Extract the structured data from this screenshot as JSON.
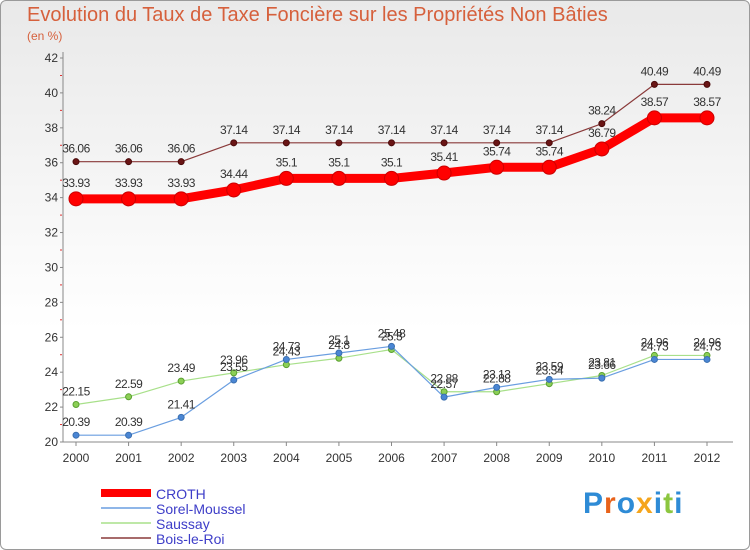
{
  "chart_title": "Evolution du Taux de Taxe Foncière sur les Propriétés Non Bâties",
  "unit_label": "(en %)",
  "chart_data": {
    "type": "line",
    "title": "Evolution du Taux de Taxe Foncière sur les Propriétés Non Bâties",
    "ylabel": "(en %)",
    "xlabel": "",
    "ylim": [
      20,
      42
    ],
    "yticks": [
      20,
      22,
      24,
      26,
      28,
      30,
      32,
      34,
      36,
      38,
      40,
      42
    ],
    "x": [
      "2000",
      "2001",
      "2002",
      "2003",
      "2004",
      "2005",
      "2006",
      "2007",
      "2008",
      "2009",
      "2010",
      "2011",
      "2012"
    ],
    "series": [
      {
        "name": "CROTH",
        "color": "#ff0000",
        "values": [
          33.93,
          33.93,
          33.93,
          34.44,
          35.1,
          35.1,
          35.1,
          35.41,
          35.74,
          35.74,
          36.79,
          38.57,
          38.57
        ]
      },
      {
        "name": "Sorel-Moussel",
        "color": "#4a86d4",
        "values": [
          20.39,
          20.39,
          21.41,
          23.55,
          24.73,
          25.1,
          25.48,
          22.57,
          23.13,
          23.59,
          23.66,
          24.73,
          24.73
        ]
      },
      {
        "name": "Saussay",
        "color": "#90d870",
        "values": [
          22.15,
          22.59,
          23.49,
          23.96,
          24.43,
          24.8,
          25.3,
          22.88,
          22.88,
          23.34,
          23.81,
          24.96,
          24.96
        ]
      },
      {
        "name": "Bois-le-Roi",
        "color": "#7a2020",
        "values": [
          36.06,
          36.06,
          36.06,
          37.14,
          37.14,
          37.14,
          37.14,
          37.14,
          37.14,
          37.14,
          38.24,
          40.49,
          40.49
        ]
      }
    ],
    "grid": false,
    "legend": "bottom-left"
  },
  "logo_text": "Proxiti",
  "logo_colors": [
    "#2e8bd6",
    "#e8621a",
    "#2e8bd6",
    "#f5a51c",
    "#2e8bd6",
    "#8cc63f",
    "#2e8bd6"
  ]
}
